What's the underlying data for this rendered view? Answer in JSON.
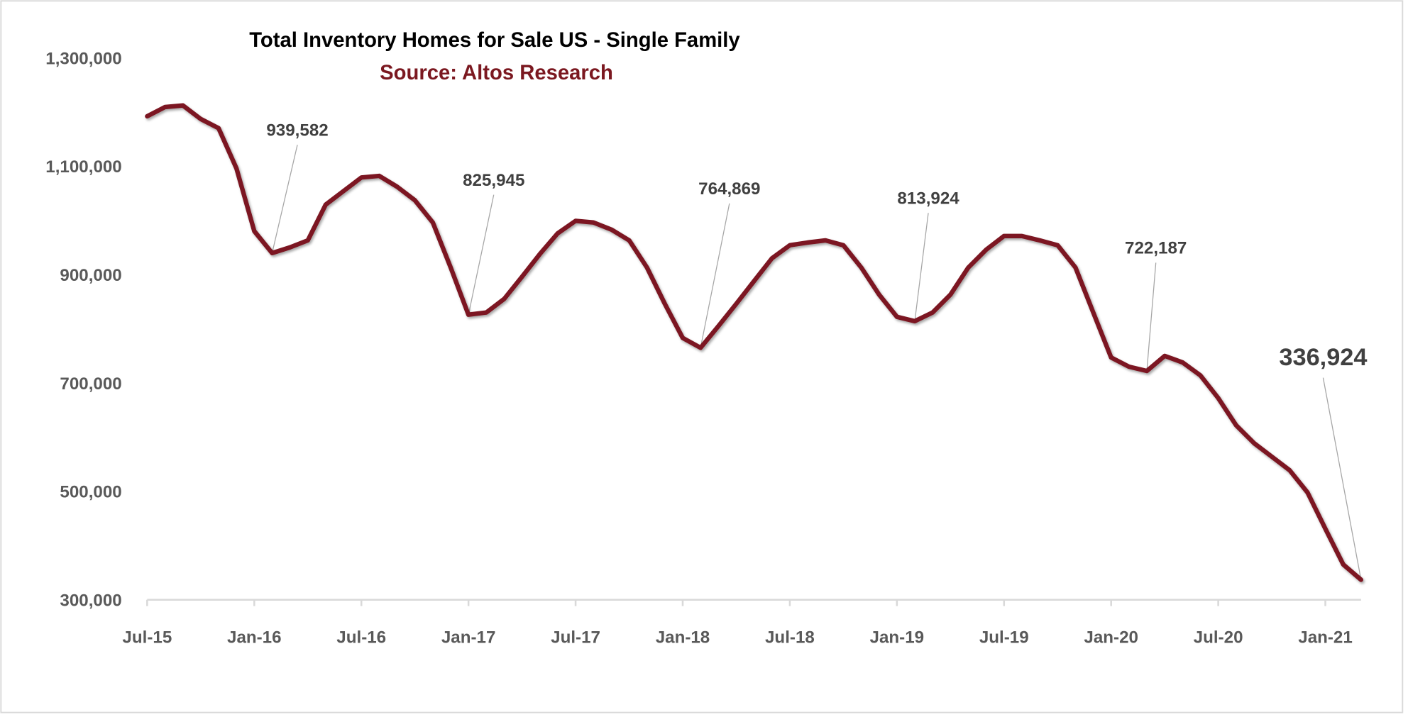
{
  "chart_data": {
    "type": "line",
    "title": "Total Inventory Homes for Sale US - Single Family",
    "subtitle": "Source: Altos Research",
    "xlabel": "",
    "ylabel": "",
    "ylim": [
      300000,
      1300000
    ],
    "y_ticks": [
      "1,300,000",
      "1,100,000",
      "900,000",
      "700,000",
      "500,000",
      "300,000"
    ],
    "y_tick_values": [
      1300000,
      1100000,
      900000,
      700000,
      500000,
      300000
    ],
    "x_ticks": [
      "Jul-15",
      "Jan-16",
      "Jul-16",
      "Jan-17",
      "Jul-17",
      "Jan-18",
      "Jul-18",
      "Jan-19",
      "Jul-19",
      "Jan-20",
      "Jul-20",
      "Jan-21"
    ],
    "x_tick_dates": [
      "2015-07",
      "2016-01",
      "2016-07",
      "2017-01",
      "2017-07",
      "2018-01",
      "2018-07",
      "2019-01",
      "2019-07",
      "2020-01",
      "2020-07",
      "2021-01"
    ],
    "grid": false,
    "legend": "none",
    "line_color": "#7b1820",
    "series": [
      {
        "x": [
          "2015-07",
          "2015-08",
          "2015-09",
          "2015-10",
          "2015-11",
          "2015-12",
          "2016-01",
          "2016-02",
          "2016-03",
          "2016-04",
          "2016-05",
          "2016-06",
          "2016-07",
          "2016-08",
          "2016-09",
          "2016-10",
          "2016-11",
          "2016-12",
          "2017-01",
          "2017-02",
          "2017-03",
          "2017-04",
          "2017-05",
          "2017-06",
          "2017-07",
          "2017-08",
          "2017-09",
          "2017-10",
          "2017-11",
          "2017-12",
          "2018-01",
          "2018-02",
          "2018-03",
          "2018-04",
          "2018-05",
          "2018-06",
          "2018-07",
          "2018-08",
          "2018-09",
          "2018-10",
          "2018-11",
          "2018-12",
          "2019-01",
          "2019-02",
          "2019-03",
          "2019-04",
          "2019-05",
          "2019-06",
          "2019-07",
          "2019-08",
          "2019-09",
          "2019-10",
          "2019-11",
          "2019-12",
          "2020-01",
          "2020-02",
          "2020-03",
          "2020-04",
          "2020-05",
          "2020-06",
          "2020-07",
          "2020-08",
          "2020-09",
          "2020-10",
          "2020-11",
          "2020-12",
          "2021-01",
          "2021-02",
          "2021-03"
        ],
        "values": [
          1192000,
          1209000,
          1212000,
          1187000,
          1170000,
          1096000,
          980000,
          939582,
          950000,
          963000,
          1029000,
          1054000,
          1079000,
          1082000,
          1062000,
          1037000,
          996000,
          913000,
          825945,
          830000,
          855000,
          896000,
          938000,
          976000,
          999000,
          996000,
          983000,
          963000,
          913000,
          846000,
          783000,
          764869,
          805000,
          846000,
          888000,
          930000,
          954000,
          959000,
          963000,
          954000,
          913000,
          863000,
          822000,
          813924,
          830000,
          863000,
          913000,
          946000,
          971000,
          971000,
          963000,
          954000,
          913000,
          830000,
          747000,
          730000,
          722187,
          750000,
          738000,
          714000,
          672000,
          622000,
          589000,
          564000,
          539000,
          498000,
          431000,
          365000,
          336924
        ]
      }
    ],
    "annotations": [
      {
        "label": "939,582",
        "date": "2016-02",
        "value": 939582
      },
      {
        "label": "825,945",
        "date": "2017-01",
        "value": 825945
      },
      {
        "label": "764,869",
        "date": "2018-02",
        "value": 764869
      },
      {
        "label": "813,924",
        "date": "2019-02",
        "value": 813924
      },
      {
        "label": "722,187",
        "date": "2020-03",
        "value": 722187
      },
      {
        "label": "336,924",
        "date": "2021-03",
        "value": 336924
      }
    ]
  }
}
